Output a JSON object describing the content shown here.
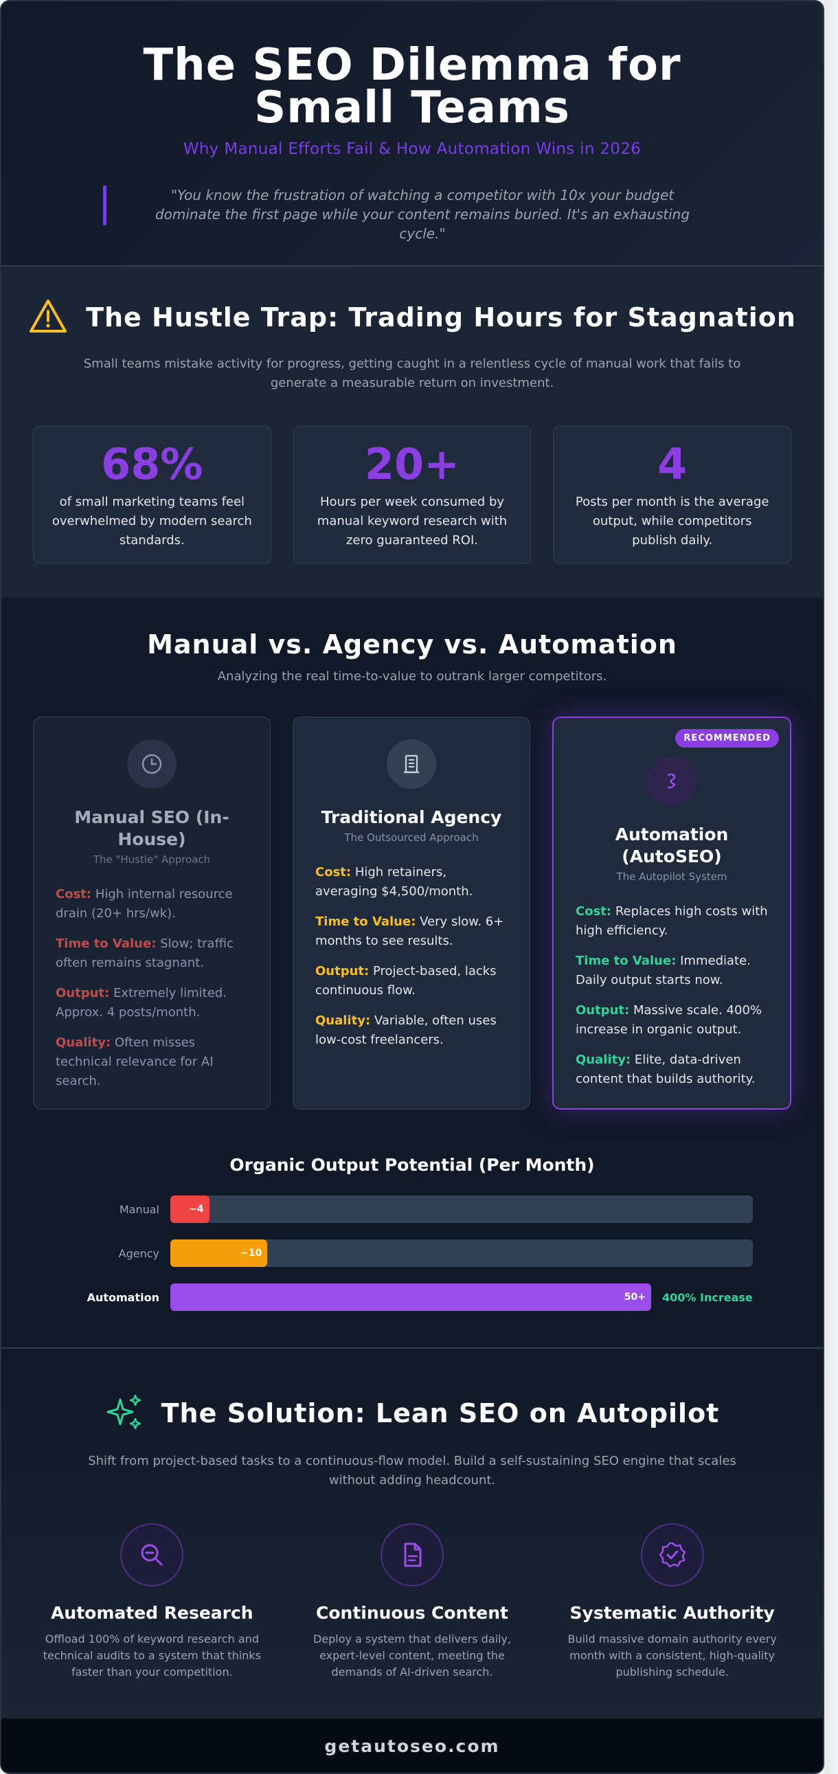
{
  "hero": {
    "title": "The SEO Dilemma for Small Teams",
    "subtitle": "Why Manual Efforts Fail & How Automation Wins in 2026",
    "quote": "\"You know the frustration of watching a competitor with 10x your budget dominate the first page while your content remains buried. It's an exhausting cycle.\""
  },
  "hustle": {
    "icon": "warning-triangle-icon",
    "title": "The Hustle Trap: Trading Hours for Stagnation",
    "description": "Small teams mistake activity for progress, getting caught in a relentless cycle of manual work that fails to generate a measurable return on investment.",
    "stats": [
      {
        "value": "68%",
        "text": "of small marketing teams feel overwhelmed by modern search standards."
      },
      {
        "value": "20+",
        "text": "Hours per week consumed by manual keyword research with zero guaranteed ROI."
      },
      {
        "value": "4",
        "text": "Posts per month is the average output, while competitors publish daily."
      }
    ]
  },
  "compare": {
    "title": "Manual vs. Agency vs. Automation",
    "subtitle": "Analyzing the real time-to-value to outrank larger competitors.",
    "columns": [
      {
        "icon": "clock-icon",
        "title": "Manual SEO (In-House)",
        "tag": "The \"Hustle\" Approach",
        "points": [
          {
            "label": "Cost:",
            "text": " High internal resource drain (20+ hrs/wk)."
          },
          {
            "label": "Time to Value:",
            "text": " Slow; traffic often remains stagnant."
          },
          {
            "label": "Output:",
            "text": " Extremely limited. Approx. 4 posts/month."
          },
          {
            "label": "Quality:",
            "text": " Often misses technical relevance for AI search."
          }
        ]
      },
      {
        "icon": "building-icon",
        "title": "Traditional Agency",
        "tag": "The Outsourced Approach",
        "points": [
          {
            "label": "Cost:",
            "text": " High retainers, averaging $4,500/month."
          },
          {
            "label": "Time to Value:",
            "text": " Very slow. 6+ months to see results."
          },
          {
            "label": "Output:",
            "text": " Project-based, lacks continuous flow."
          },
          {
            "label": "Quality:",
            "text": " Variable, often uses low-cost freelancers."
          }
        ]
      },
      {
        "icon": "robot-icon",
        "badge": "RECOMMENDED",
        "title": "Automation (AutoSEO)",
        "tag": "The Autopilot System",
        "points": [
          {
            "label": "Cost:",
            "text": " Replaces high costs with high efficiency."
          },
          {
            "label": "Time to Value:",
            "text": " Immediate. Daily output starts now."
          },
          {
            "label": "Output:",
            "text": " Massive scale. 400% increase in organic output."
          },
          {
            "label": "Quality:",
            "text": " Elite, data-driven content that builds authority."
          }
        ]
      }
    ]
  },
  "chart_data": {
    "type": "bar",
    "orientation": "horizontal",
    "title": "Organic Output Potential (Per Month)",
    "categories": [
      "Manual",
      "Agency",
      "Automation"
    ],
    "values": [
      4,
      10,
      50
    ],
    "value_labels": [
      "~4",
      "~10",
      "50+"
    ],
    "colors": [
      "#ef4444",
      "#f59e0b",
      "#9b4dea"
    ],
    "annotation": "400% Increase",
    "xlim": [
      0,
      60
    ]
  },
  "solution": {
    "icon": "sparkles-icon",
    "title": "The Solution: Lean SEO on Autopilot",
    "description": "Shift from project-based tasks to a continuous-flow model. Build a self-sustaining SEO engine that scales without adding headcount.",
    "features": [
      {
        "icon": "search-minus-icon",
        "title": "Automated Research",
        "text": "Offload 100% of keyword research and technical audits to a system that thinks faster than your competition."
      },
      {
        "icon": "document-icon",
        "title": "Continuous Content",
        "text": "Deploy a system that delivers daily, expert-level content, meeting the demands of AI-driven search."
      },
      {
        "icon": "badge-check-icon",
        "title": "Systematic Authority",
        "text": "Build massive domain authority every month with a consistent, high-quality publishing schedule."
      }
    ]
  },
  "footer": {
    "domain": "getautoseo.com"
  }
}
